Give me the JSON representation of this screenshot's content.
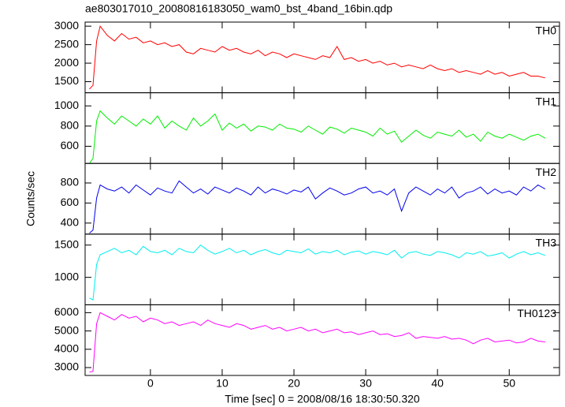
{
  "title": "ae803017010_20080816183050_wam0_bst_4band_16bin.qdp",
  "xlabel": "Time [sec] 0 = 2008/08/16 18:30:50.320",
  "ylabel": "Counts/sec",
  "chart_data": [
    {
      "type": "line",
      "xlim": [
        -9.1,
        57
      ],
      "ylim": [
        1200,
        3110
      ],
      "yticks": [
        1500,
        2000,
        2500,
        3000
      ],
      "x": [
        -8.5,
        -8,
        -7.5,
        -7,
        -6,
        -5,
        -4,
        -3,
        -2,
        -1,
        0,
        1,
        2,
        3,
        4,
        5,
        6,
        7,
        8,
        9,
        10,
        11,
        12,
        13,
        14,
        15,
        16,
        17,
        18,
        19,
        20,
        21,
        22,
        23,
        24,
        25,
        26,
        27,
        28,
        29,
        30,
        31,
        32,
        33,
        34,
        35,
        36,
        37,
        38,
        39,
        40,
        41,
        42,
        43,
        44,
        45,
        46,
        47,
        48,
        49,
        50,
        51,
        52,
        53,
        54,
        55
      ],
      "series": [
        {
          "name": "TH0",
          "color": "#ff0000",
          "values": [
            1300,
            1400,
            2600,
            3000,
            2750,
            2600,
            2800,
            2650,
            2700,
            2550,
            2600,
            2500,
            2550,
            2450,
            2500,
            2300,
            2250,
            2400,
            2350,
            2300,
            2450,
            2350,
            2400,
            2300,
            2250,
            2350,
            2200,
            2300,
            2250,
            2150,
            2250,
            2200,
            2150,
            2100,
            2200,
            2150,
            2450,
            2100,
            2150,
            2050,
            2100,
            2000,
            2050,
            1950,
            2000,
            1900,
            1950,
            1900,
            1850,
            1950,
            1850,
            1800,
            1850,
            1750,
            1800,
            1750,
            1700,
            1800,
            1700,
            1750,
            1650,
            1700,
            1750,
            1650,
            1650,
            1600
          ]
        }
      ]
    },
    {
      "type": "line",
      "xlim": [
        -9.1,
        57
      ],
      "ylim": [
        430,
        1130
      ],
      "yticks": [
        600,
        800,
        1000
      ],
      "x": [
        -8.5,
        -8,
        -7.5,
        -7,
        -6,
        -5,
        -4,
        -3,
        -2,
        -1,
        0,
        1,
        2,
        3,
        4,
        5,
        6,
        7,
        8,
        9,
        10,
        11,
        12,
        13,
        14,
        15,
        16,
        17,
        18,
        19,
        20,
        21,
        22,
        23,
        24,
        25,
        26,
        27,
        28,
        29,
        30,
        31,
        32,
        33,
        34,
        35,
        36,
        37,
        38,
        39,
        40,
        41,
        42,
        43,
        44,
        45,
        46,
        47,
        48,
        49,
        50,
        51,
        52,
        53,
        54,
        55
      ],
      "series": [
        {
          "name": "TH1",
          "color": "#00ee00",
          "values": [
            430,
            480,
            850,
            950,
            880,
            820,
            900,
            850,
            800,
            870,
            820,
            900,
            780,
            850,
            800,
            760,
            880,
            800,
            850,
            920,
            760,
            830,
            780,
            820,
            750,
            800,
            790,
            760,
            820,
            780,
            770,
            740,
            800,
            760,
            720,
            790,
            770,
            730,
            780,
            760,
            740,
            700,
            780,
            720,
            750,
            640,
            700,
            760,
            710,
            680,
            740,
            720,
            700,
            760,
            690,
            720,
            650,
            740,
            700,
            680,
            720,
            690,
            660,
            700,
            720,
            680
          ]
        }
      ]
    },
    {
      "type": "line",
      "xlim": [
        -9.1,
        57
      ],
      "ylim": [
        290,
        995
      ],
      "yticks": [
        400,
        600,
        800
      ],
      "x": [
        -8.5,
        -8,
        -7.5,
        -7,
        -6,
        -5,
        -4,
        -3,
        -2,
        -1,
        0,
        1,
        2,
        3,
        4,
        5,
        6,
        7,
        8,
        9,
        10,
        11,
        12,
        13,
        14,
        15,
        16,
        17,
        18,
        19,
        20,
        21,
        22,
        23,
        24,
        25,
        26,
        27,
        28,
        29,
        30,
        31,
        32,
        33,
        34,
        35,
        36,
        37,
        38,
        39,
        40,
        41,
        42,
        43,
        44,
        45,
        46,
        47,
        48,
        49,
        50,
        51,
        52,
        53,
        54,
        55
      ],
      "series": [
        {
          "name": "TH2",
          "color": "#0000ee",
          "values": [
            300,
            330,
            650,
            780,
            740,
            720,
            760,
            700,
            780,
            730,
            680,
            750,
            720,
            700,
            820,
            760,
            700,
            740,
            690,
            760,
            730,
            700,
            750,
            720,
            680,
            760,
            700,
            740,
            720,
            690,
            730,
            710,
            760,
            640,
            700,
            750,
            720,
            680,
            700,
            740,
            760,
            700,
            720,
            680,
            740,
            520,
            700,
            760,
            720,
            680,
            740,
            700,
            760,
            650,
            700,
            720,
            760,
            690,
            740,
            700,
            720,
            680,
            760,
            720,
            780,
            740
          ]
        }
      ]
    },
    {
      "type": "line",
      "xlim": [
        -9.1,
        57
      ],
      "ylim": [
        575,
        1670
      ],
      "yticks": [
        1000,
        1500
      ],
      "x": [
        -8.5,
        -8,
        -7.5,
        -7,
        -6,
        -5,
        -4,
        -3,
        -2,
        -1,
        0,
        1,
        2,
        3,
        4,
        5,
        6,
        7,
        8,
        9,
        10,
        11,
        12,
        13,
        14,
        15,
        16,
        17,
        18,
        19,
        20,
        21,
        22,
        23,
        24,
        25,
        26,
        27,
        28,
        29,
        30,
        31,
        32,
        33,
        34,
        35,
        36,
        37,
        38,
        39,
        40,
        41,
        42,
        43,
        44,
        45,
        46,
        47,
        48,
        49,
        50,
        51,
        52,
        53,
        54,
        55
      ],
      "series": [
        {
          "name": "TH3",
          "color": "#00eeee",
          "values": [
            680,
            650,
            1200,
            1350,
            1400,
            1450,
            1380,
            1420,
            1350,
            1480,
            1400,
            1380,
            1420,
            1350,
            1450,
            1400,
            1380,
            1500,
            1420,
            1360,
            1400,
            1450,
            1380,
            1420,
            1350,
            1400,
            1430,
            1380,
            1350,
            1420,
            1400,
            1380,
            1440,
            1360,
            1400,
            1380,
            1420,
            1350,
            1390,
            1410,
            1360,
            1400,
            1380,
            1350,
            1420,
            1300,
            1380,
            1400,
            1360,
            1340,
            1400,
            1380,
            1350,
            1300,
            1380,
            1360,
            1400,
            1330,
            1350,
            1380,
            1300,
            1360,
            1400,
            1350,
            1380,
            1340
          ]
        }
      ]
    },
    {
      "type": "line",
      "xlim": [
        -9.1,
        57
      ],
      "ylim": [
        2570,
        6430
      ],
      "yticks": [
        3000,
        4000,
        5000,
        6000
      ],
      "xticks": [
        0,
        10,
        20,
        30,
        40,
        50
      ],
      "x": [
        -8.5,
        -8,
        -7.5,
        -7,
        -6,
        -5,
        -4,
        -3,
        -2,
        -1,
        0,
        1,
        2,
        3,
        4,
        5,
        6,
        7,
        8,
        9,
        10,
        11,
        12,
        13,
        14,
        15,
        16,
        17,
        18,
        19,
        20,
        21,
        22,
        23,
        24,
        25,
        26,
        27,
        28,
        29,
        30,
        31,
        32,
        33,
        34,
        35,
        36,
        37,
        38,
        39,
        40,
        41,
        42,
        43,
        44,
        45,
        46,
        47,
        48,
        49,
        50,
        51,
        52,
        53,
        54,
        55
      ],
      "series": [
        {
          "name": "TH0123",
          "color": "#ff00ff",
          "values": [
            2750,
            2800,
            5400,
            6000,
            5800,
            5600,
            5900,
            5700,
            5800,
            5500,
            5700,
            5600,
            5400,
            5500,
            5300,
            5400,
            5500,
            5300,
            5600,
            5400,
            5300,
            5200,
            5400,
            5300,
            5100,
            5200,
            5300,
            5100,
            5200,
            5000,
            5100,
            5200,
            5000,
            5100,
            4900,
            5000,
            5100,
            4900,
            4950,
            4800,
            4900,
            5000,
            4800,
            4850,
            4700,
            4750,
            4900,
            4600,
            4700,
            4650,
            4600,
            4700,
            4550,
            4600,
            4500,
            4300,
            4500,
            4600,
            4400,
            4450,
            4500,
            4350,
            4400,
            4600,
            4450,
            4400
          ]
        }
      ]
    }
  ]
}
